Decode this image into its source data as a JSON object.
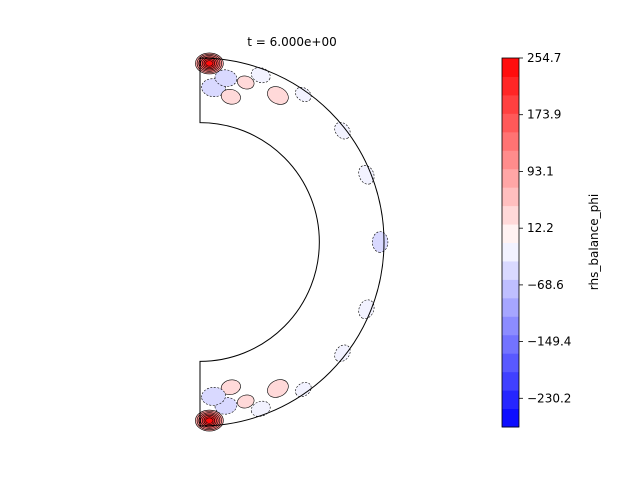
{
  "chart_data": {
    "type": "heatmap",
    "title": "t = 6.000e+00",
    "geometry": "meridional half-annulus (spherical shell)",
    "inner_radius_ratio": 0.35,
    "colorbar": {
      "label": "rhs_balance_phi",
      "min": -271.1,
      "max": 254.7,
      "tick_values": [
        254.7,
        173.9,
        93.1,
        12.2,
        -68.6,
        -149.4,
        -230.2
      ],
      "tick_labels": [
        "254.7",
        "173.9",
        "93.1",
        "12.2",
        "−68.6",
        "−149.4",
        "−230.2"
      ],
      "levels": 20,
      "colormap": "bwr"
    },
    "features": [
      {
        "theta_deg": 3,
        "r_frac": 0.92,
        "value": 254.7,
        "sign": "positive",
        "note": "strong positive lobe near north pole, outer boundary"
      },
      {
        "theta_deg": 5,
        "r_frac": 0.55,
        "value": -60,
        "sign": "negative"
      },
      {
        "theta_deg": 9,
        "r_frac": 0.72,
        "value": -40,
        "sign": "negative"
      },
      {
        "theta_deg": 12,
        "r_frac": 0.45,
        "value": 30,
        "sign": "positive"
      },
      {
        "theta_deg": 16,
        "r_frac": 0.72,
        "value": 20,
        "sign": "positive"
      },
      {
        "theta_deg": 20,
        "r_frac": 0.9,
        "value": -30,
        "sign": "negative"
      },
      {
        "theta_deg": 28,
        "r_frac": 0.72,
        "value": 40,
        "sign": "positive"
      },
      {
        "theta_deg": 35,
        "r_frac": 0.94,
        "value": -20,
        "sign": "negative"
      },
      {
        "theta_deg": 52,
        "r_frac": 0.95,
        "value": -25,
        "sign": "negative"
      },
      {
        "theta_deg": 68,
        "r_frac": 0.93,
        "value": -30,
        "sign": "negative"
      },
      {
        "theta_deg": 90,
        "r_frac": 0.94,
        "value": -35,
        "sign": "negative"
      },
      {
        "theta_deg": 112,
        "r_frac": 0.93,
        "value": -30,
        "sign": "negative"
      },
      {
        "theta_deg": 128,
        "r_frac": 0.95,
        "value": -25,
        "sign": "negative"
      },
      {
        "theta_deg": 145,
        "r_frac": 0.94,
        "value": -20,
        "sign": "negative"
      },
      {
        "theta_deg": 152,
        "r_frac": 0.72,
        "value": 40,
        "sign": "positive"
      },
      {
        "theta_deg": 160,
        "r_frac": 0.9,
        "value": -30,
        "sign": "negative"
      },
      {
        "theta_deg": 164,
        "r_frac": 0.72,
        "value": 20,
        "sign": "positive"
      },
      {
        "theta_deg": 168,
        "r_frac": 0.45,
        "value": 30,
        "sign": "positive"
      },
      {
        "theta_deg": 171,
        "r_frac": 0.72,
        "value": -40,
        "sign": "negative"
      },
      {
        "theta_deg": 175,
        "r_frac": 0.55,
        "value": -60,
        "sign": "negative"
      },
      {
        "theta_deg": 177,
        "r_frac": 0.92,
        "value": 254.7,
        "sign": "positive",
        "note": "strong positive lobe near south pole, outer boundary"
      }
    ]
  }
}
